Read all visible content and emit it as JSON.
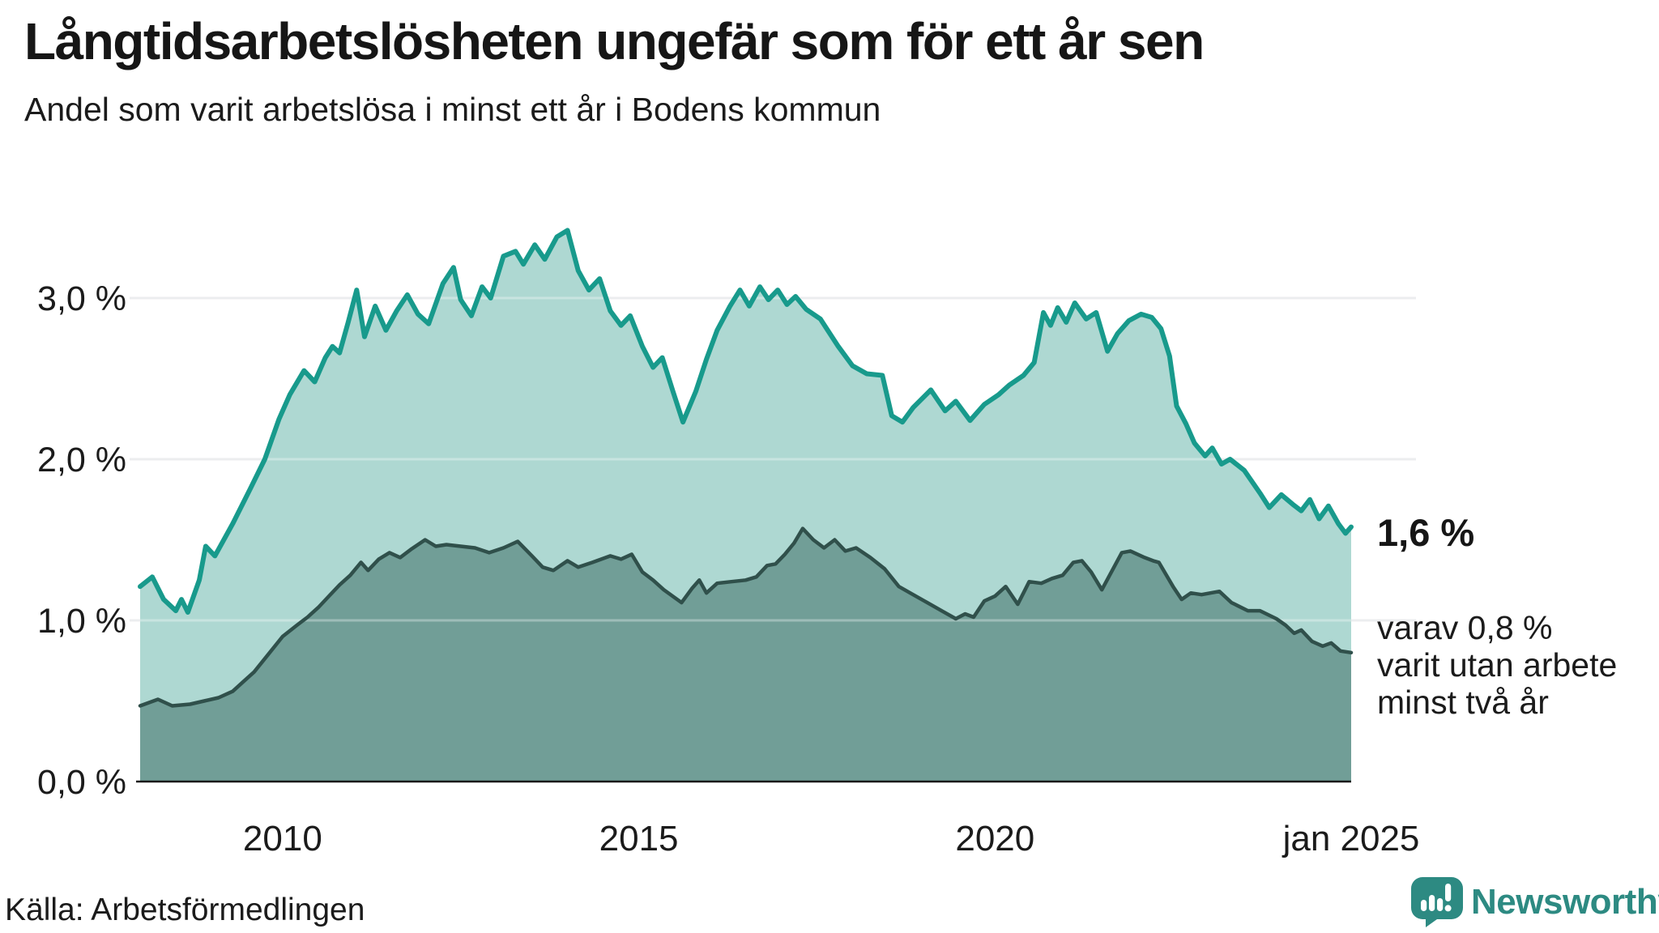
{
  "header": {
    "title": "Långtidsarbetslösheten ungefär som för ett år sen",
    "subtitle": "Andel som varit arbetslösa i minst ett år i Bodens kommun"
  },
  "annotations": {
    "latest_value": "1,6 %",
    "note_lines": [
      "varav 0,8 %",
      "varit utan arbete",
      "minst två år"
    ]
  },
  "footer": {
    "source": "Källa: Arbetsförmedlingen",
    "brand": "Newsworthy"
  },
  "colors": {
    "brand": "#2d8a82",
    "series1_line": "#189a8c",
    "series1_fill": "#aed8d2",
    "series2_line": "#30504b",
    "series2_fill": "#719e97",
    "gridline": "#e4e5e7",
    "gridline_overlay": "rgba(255,255,255,0.32)",
    "axis": "#1a1a1a",
    "text": "#1b1b1b"
  },
  "chart_data": {
    "type": "area",
    "title": "Långtidsarbetslösheten ungefär som för ett år sen",
    "subtitle": "Andel som varit arbetslösa i minst ett år i Bodens kommun",
    "unit": "%",
    "grid": "horizontal",
    "legend_position": "none",
    "x_domain": [
      2008.0,
      2025.0
    ],
    "ylim": [
      0,
      3.6
    ],
    "x_ticks": [
      {
        "value": 2010,
        "label": "2010"
      },
      {
        "value": 2015,
        "label": "2015"
      },
      {
        "value": 2020,
        "label": "2020"
      },
      {
        "value": 2025,
        "label": "jan 2025"
      }
    ],
    "y_ticks": [
      {
        "value": 0,
        "label": "0,0 %"
      },
      {
        "value": 1,
        "label": "1,0 %"
      },
      {
        "value": 2,
        "label": "2,0 %"
      },
      {
        "value": 3,
        "label": "3,0 %"
      }
    ],
    "series": [
      {
        "name": "Arbetslösa minst ett år",
        "end_label": "1,6 %",
        "points": [
          [
            2008.0,
            1.21
          ],
          [
            2008.17,
            1.27
          ],
          [
            2008.33,
            1.13
          ],
          [
            2008.5,
            1.06
          ],
          [
            2008.58,
            1.13
          ],
          [
            2008.67,
            1.05
          ],
          [
            2008.83,
            1.25
          ],
          [
            2008.92,
            1.46
          ],
          [
            2009.05,
            1.4
          ],
          [
            2009.3,
            1.6
          ],
          [
            2009.55,
            1.82
          ],
          [
            2009.75,
            2.0
          ],
          [
            2009.95,
            2.25
          ],
          [
            2010.1,
            2.4
          ],
          [
            2010.3,
            2.55
          ],
          [
            2010.45,
            2.48
          ],
          [
            2010.6,
            2.63
          ],
          [
            2010.7,
            2.7
          ],
          [
            2010.8,
            2.66
          ],
          [
            2010.92,
            2.85
          ],
          [
            2011.04,
            3.05
          ],
          [
            2011.15,
            2.76
          ],
          [
            2011.3,
            2.95
          ],
          [
            2011.45,
            2.8
          ],
          [
            2011.6,
            2.92
          ],
          [
            2011.75,
            3.02
          ],
          [
            2011.9,
            2.9
          ],
          [
            2012.05,
            2.84
          ],
          [
            2012.25,
            3.09
          ],
          [
            2012.4,
            3.19
          ],
          [
            2012.5,
            2.99
          ],
          [
            2012.65,
            2.89
          ],
          [
            2012.8,
            3.07
          ],
          [
            2012.92,
            3.0
          ],
          [
            2013.1,
            3.26
          ],
          [
            2013.27,
            3.29
          ],
          [
            2013.38,
            3.21
          ],
          [
            2013.54,
            3.33
          ],
          [
            2013.68,
            3.24
          ],
          [
            2013.85,
            3.38
          ],
          [
            2014.0,
            3.42
          ],
          [
            2014.15,
            3.17
          ],
          [
            2014.3,
            3.05
          ],
          [
            2014.45,
            3.12
          ],
          [
            2014.6,
            2.92
          ],
          [
            2014.75,
            2.83
          ],
          [
            2014.88,
            2.89
          ],
          [
            2015.05,
            2.7
          ],
          [
            2015.2,
            2.57
          ],
          [
            2015.33,
            2.63
          ],
          [
            2015.48,
            2.42
          ],
          [
            2015.62,
            2.23
          ],
          [
            2015.8,
            2.42
          ],
          [
            2015.95,
            2.62
          ],
          [
            2016.1,
            2.8
          ],
          [
            2016.28,
            2.95
          ],
          [
            2016.42,
            3.05
          ],
          [
            2016.55,
            2.95
          ],
          [
            2016.7,
            3.07
          ],
          [
            2016.82,
            2.99
          ],
          [
            2016.95,
            3.05
          ],
          [
            2017.08,
            2.96
          ],
          [
            2017.2,
            3.01
          ],
          [
            2017.35,
            2.93
          ],
          [
            2017.55,
            2.87
          ],
          [
            2017.8,
            2.7
          ],
          [
            2018.0,
            2.58
          ],
          [
            2018.2,
            2.53
          ],
          [
            2018.42,
            2.52
          ],
          [
            2018.55,
            2.27
          ],
          [
            2018.7,
            2.23
          ],
          [
            2018.85,
            2.32
          ],
          [
            2019.1,
            2.43
          ],
          [
            2019.3,
            2.3
          ],
          [
            2019.45,
            2.36
          ],
          [
            2019.65,
            2.24
          ],
          [
            2019.85,
            2.34
          ],
          [
            2020.05,
            2.4
          ],
          [
            2020.2,
            2.46
          ],
          [
            2020.4,
            2.52
          ],
          [
            2020.55,
            2.6
          ],
          [
            2020.68,
            2.91
          ],
          [
            2020.78,
            2.83
          ],
          [
            2020.88,
            2.94
          ],
          [
            2021.0,
            2.85
          ],
          [
            2021.12,
            2.97
          ],
          [
            2021.28,
            2.87
          ],
          [
            2021.42,
            2.91
          ],
          [
            2021.58,
            2.67
          ],
          [
            2021.72,
            2.78
          ],
          [
            2021.88,
            2.86
          ],
          [
            2022.05,
            2.9
          ],
          [
            2022.2,
            2.88
          ],
          [
            2022.33,
            2.81
          ],
          [
            2022.45,
            2.64
          ],
          [
            2022.55,
            2.33
          ],
          [
            2022.68,
            2.22
          ],
          [
            2022.8,
            2.1
          ],
          [
            2022.95,
            2.02
          ],
          [
            2023.05,
            2.07
          ],
          [
            2023.18,
            1.97
          ],
          [
            2023.3,
            2.0
          ],
          [
            2023.5,
            1.93
          ],
          [
            2023.72,
            1.79
          ],
          [
            2023.85,
            1.7
          ],
          [
            2024.02,
            1.78
          ],
          [
            2024.18,
            1.72
          ],
          [
            2024.3,
            1.68
          ],
          [
            2024.42,
            1.75
          ],
          [
            2024.55,
            1.63
          ],
          [
            2024.68,
            1.71
          ],
          [
            2024.82,
            1.6
          ],
          [
            2024.92,
            1.54
          ],
          [
            2025.0,
            1.58
          ]
        ]
      },
      {
        "name": "varav arbetslösa minst två år",
        "end_label": "0,8 %",
        "points": [
          [
            2008.0,
            0.47
          ],
          [
            2008.25,
            0.51
          ],
          [
            2008.45,
            0.47
          ],
          [
            2008.7,
            0.48
          ],
          [
            2008.9,
            0.5
          ],
          [
            2009.1,
            0.52
          ],
          [
            2009.3,
            0.56
          ],
          [
            2009.45,
            0.62
          ],
          [
            2009.6,
            0.68
          ],
          [
            2009.8,
            0.79
          ],
          [
            2010.0,
            0.9
          ],
          [
            2010.2,
            0.97
          ],
          [
            2010.35,
            1.02
          ],
          [
            2010.5,
            1.08
          ],
          [
            2010.65,
            1.15
          ],
          [
            2010.8,
            1.22
          ],
          [
            2010.95,
            1.28
          ],
          [
            2011.1,
            1.36
          ],
          [
            2011.2,
            1.31
          ],
          [
            2011.35,
            1.38
          ],
          [
            2011.5,
            1.42
          ],
          [
            2011.65,
            1.39
          ],
          [
            2011.8,
            1.44
          ],
          [
            2012.0,
            1.5
          ],
          [
            2012.15,
            1.46
          ],
          [
            2012.3,
            1.47
          ],
          [
            2012.5,
            1.46
          ],
          [
            2012.7,
            1.45
          ],
          [
            2012.9,
            1.42
          ],
          [
            2013.1,
            1.45
          ],
          [
            2013.3,
            1.49
          ],
          [
            2013.5,
            1.4
          ],
          [
            2013.65,
            1.33
          ],
          [
            2013.8,
            1.31
          ],
          [
            2014.0,
            1.37
          ],
          [
            2014.15,
            1.33
          ],
          [
            2014.35,
            1.36
          ],
          [
            2014.6,
            1.4
          ],
          [
            2014.75,
            1.38
          ],
          [
            2014.9,
            1.41
          ],
          [
            2015.05,
            1.3
          ],
          [
            2015.2,
            1.25
          ],
          [
            2015.35,
            1.19
          ],
          [
            2015.6,
            1.11
          ],
          [
            2015.75,
            1.2
          ],
          [
            2015.85,
            1.25
          ],
          [
            2015.95,
            1.17
          ],
          [
            2016.1,
            1.23
          ],
          [
            2016.3,
            1.24
          ],
          [
            2016.5,
            1.25
          ],
          [
            2016.65,
            1.27
          ],
          [
            2016.8,
            1.34
          ],
          [
            2016.92,
            1.35
          ],
          [
            2017.05,
            1.41
          ],
          [
            2017.18,
            1.48
          ],
          [
            2017.3,
            1.57
          ],
          [
            2017.45,
            1.5
          ],
          [
            2017.6,
            1.45
          ],
          [
            2017.75,
            1.5
          ],
          [
            2017.9,
            1.43
          ],
          [
            2018.05,
            1.45
          ],
          [
            2018.25,
            1.39
          ],
          [
            2018.45,
            1.32
          ],
          [
            2018.65,
            1.21
          ],
          [
            2018.85,
            1.16
          ],
          [
            2019.05,
            1.11
          ],
          [
            2019.25,
            1.06
          ],
          [
            2019.45,
            1.01
          ],
          [
            2019.58,
            1.04
          ],
          [
            2019.7,
            1.02
          ],
          [
            2019.85,
            1.12
          ],
          [
            2020.0,
            1.15
          ],
          [
            2020.15,
            1.21
          ],
          [
            2020.32,
            1.1
          ],
          [
            2020.48,
            1.24
          ],
          [
            2020.65,
            1.23
          ],
          [
            2020.8,
            1.26
          ],
          [
            2020.95,
            1.28
          ],
          [
            2021.1,
            1.36
          ],
          [
            2021.22,
            1.37
          ],
          [
            2021.35,
            1.3
          ],
          [
            2021.5,
            1.19
          ],
          [
            2021.78,
            1.42
          ],
          [
            2021.9,
            1.43
          ],
          [
            2022.1,
            1.39
          ],
          [
            2022.22,
            1.37
          ],
          [
            2022.3,
            1.36
          ],
          [
            2022.5,
            1.21
          ],
          [
            2022.62,
            1.13
          ],
          [
            2022.75,
            1.17
          ],
          [
            2022.9,
            1.16
          ],
          [
            2023.15,
            1.18
          ],
          [
            2023.32,
            1.11
          ],
          [
            2023.55,
            1.06
          ],
          [
            2023.72,
            1.06
          ],
          [
            2023.95,
            1.01
          ],
          [
            2024.08,
            0.97
          ],
          [
            2024.2,
            0.92
          ],
          [
            2024.3,
            0.94
          ],
          [
            2024.45,
            0.87
          ],
          [
            2024.6,
            0.84
          ],
          [
            2024.72,
            0.86
          ],
          [
            2024.85,
            0.81
          ],
          [
            2025.0,
            0.8
          ]
        ]
      }
    ]
  }
}
